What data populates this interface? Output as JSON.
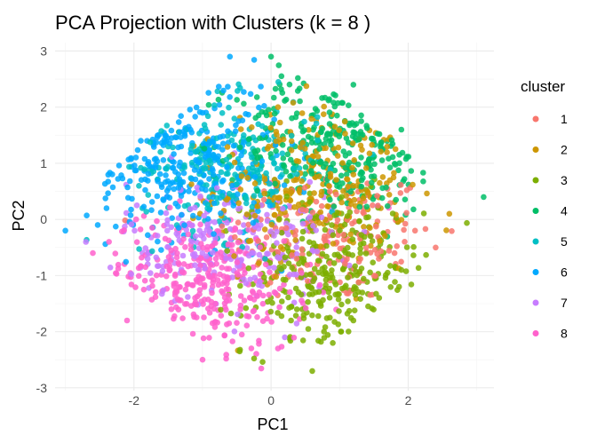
{
  "chart_data": {
    "type": "scatter",
    "title": "PCA Projection with Clusters (k = 8 )",
    "xlabel": "PC1",
    "ylabel": "PC2",
    "xlim": [
      -3.15,
      3.25
    ],
    "ylim": [
      -3.05,
      3.15
    ],
    "x_ticks": [
      -2,
      0,
      2
    ],
    "y_ticks": [
      -3,
      -2,
      -1,
      0,
      1,
      2,
      3
    ],
    "x_tick_labels": [
      "-2",
      "0",
      "2"
    ],
    "y_tick_labels": [
      "-3",
      "-2",
      "-1",
      "0",
      "1",
      "2",
      "3"
    ],
    "grid": true,
    "legend": {
      "title": "cluster",
      "position": "right"
    },
    "series": [
      {
        "name": "1",
        "color": "#F8766D",
        "cx": 0.9,
        "cy": -0.3,
        "sx": 0.75,
        "sy": 0.6,
        "n": 170,
        "sample_points": [
          [
            1.8,
            -0.6
          ],
          [
            2.1,
            -0.2
          ],
          [
            1.5,
            -1.0
          ],
          [
            0.7,
            0.1
          ],
          [
            2.4,
            -0.5
          ]
        ]
      },
      {
        "name": "2",
        "color": "#CD9600",
        "cx": 0.6,
        "cy": 0.6,
        "sx": 0.7,
        "sy": 0.7,
        "n": 280,
        "sample_points": [
          [
            1.2,
            0.8
          ],
          [
            0.3,
            1.5
          ],
          [
            1.6,
            0.2
          ],
          [
            0.1,
            2.0
          ],
          [
            2.6,
            0.1
          ]
        ]
      },
      {
        "name": "3",
        "color": "#7CAE00",
        "cx": 0.9,
        "cy": -1.0,
        "sx": 0.65,
        "sy": 0.7,
        "n": 300,
        "sample_points": [
          [
            0.6,
            -2.7
          ],
          [
            1.2,
            -1.8
          ],
          [
            0.3,
            -0.6
          ],
          [
            1.9,
            -0.9
          ],
          [
            0.9,
            -2.2
          ]
        ]
      },
      {
        "name": "4",
        "color": "#00BE67",
        "cx": 1.0,
        "cy": 1.4,
        "sx": 0.75,
        "sy": 0.65,
        "n": 300,
        "sample_points": [
          [
            3.1,
            0.4
          ],
          [
            0.0,
            2.9
          ],
          [
            1.9,
            1.6
          ],
          [
            1.2,
            2.4
          ],
          [
            0.6,
            1.0
          ]
        ]
      },
      {
        "name": "5",
        "color": "#00BFC4",
        "cx": -0.6,
        "cy": 0.9,
        "sx": 0.65,
        "sy": 0.6,
        "n": 220,
        "sample_points": [
          [
            -1.3,
            0.9
          ],
          [
            -0.4,
            1.5
          ],
          [
            -0.9,
            0.4
          ],
          [
            0.1,
            0.6
          ],
          [
            -1.5,
            1.3
          ]
        ]
      },
      {
        "name": "6",
        "color": "#00A9FF",
        "cx": -1.3,
        "cy": 1.1,
        "sx": 0.7,
        "sy": 0.7,
        "n": 300,
        "sample_points": [
          [
            -3.0,
            -0.2
          ],
          [
            -0.6,
            2.9
          ],
          [
            -1.9,
            1.4
          ],
          [
            -1.2,
            0.5
          ],
          [
            -2.4,
            0.2
          ]
        ]
      },
      {
        "name": "7",
        "color": "#C77CFF",
        "cx": -0.6,
        "cy": -0.4,
        "sx": 0.75,
        "sy": 0.55,
        "n": 240,
        "sample_points": [
          [
            -1.8,
            -0.7
          ],
          [
            -0.4,
            -0.1
          ],
          [
            0.2,
            -2.1
          ],
          [
            -1.1,
            -0.3
          ],
          [
            -2.7,
            -0.4
          ]
        ]
      },
      {
        "name": "8",
        "color": "#FF61CC",
        "cx": -1.0,
        "cy": -1.1,
        "sx": 0.75,
        "sy": 0.6,
        "n": 320,
        "sample_points": [
          [
            -1.0,
            -2.5
          ],
          [
            -2.1,
            -1.8
          ],
          [
            -0.3,
            -1.4
          ],
          [
            -2.6,
            -0.6
          ],
          [
            0.1,
            -2.3
          ]
        ]
      }
    ]
  }
}
